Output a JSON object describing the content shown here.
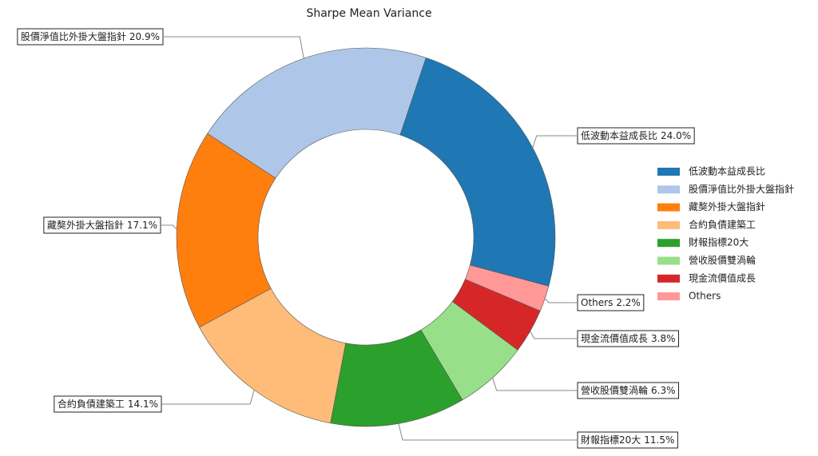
{
  "chart_data": {
    "type": "donut",
    "title": "Sharpe Mean Variance",
    "categories": [
      "低波動本益成長比",
      "股價淨值比外掛大盤指針",
      "藏獒外掛大盤指針",
      "合約負債建築工",
      "財報指標20大",
      "營收股價雙渦輪",
      "現金流價值成長",
      "Others"
    ],
    "values": [
      24.0,
      20.9,
      17.1,
      14.1,
      11.5,
      6.3,
      3.8,
      2.2
    ],
    "value_labels": [
      "24.0%",
      "20.9%",
      "17.1%",
      "14.1%",
      "11.5%",
      "6.3%",
      "3.8%",
      "2.2%"
    ],
    "colors": [
      "#1f77b4",
      "#aec7e8",
      "#ff7f0e",
      "#ffbb78",
      "#2ca02c",
      "#98df8a",
      "#d62728",
      "#ff9896"
    ],
    "legend": "right"
  }
}
